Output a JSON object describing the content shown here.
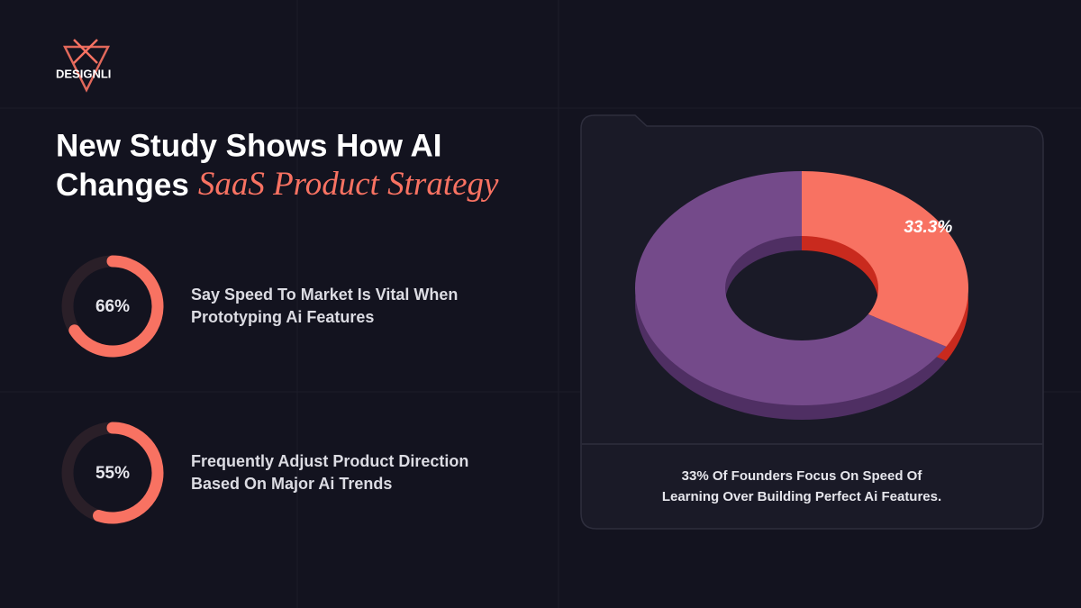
{
  "brand": "DESIGNLI",
  "title": {
    "line1": "New Study Shows How AI",
    "line2_plain": "Changes",
    "line2_accent": "SaaS Product Strategy"
  },
  "chart_data": [
    {
      "type": "ring",
      "values": [
        66
      ],
      "value_labels": [
        "66%"
      ],
      "color": "#f87262",
      "caption": [
        "Say Speed To Market Is Vital When",
        "Prototyping Ai Features"
      ]
    },
    {
      "type": "ring",
      "values": [
        55
      ],
      "value_labels": [
        "55%"
      ],
      "color": "#f87262",
      "caption": [
        "Frequently Adjust Product Direction",
        "Based On Major Ai Trends"
      ]
    },
    {
      "type": "pie",
      "values": [
        33.3,
        66.7
      ],
      "value_labels": [
        "33.3%",
        null
      ],
      "colors": [
        "#f87262",
        "#744a8a"
      ],
      "caption": [
        "33% Of Founders Focus On Speed Of",
        "Learning Over Building Perfect Ai Features."
      ]
    }
  ]
}
